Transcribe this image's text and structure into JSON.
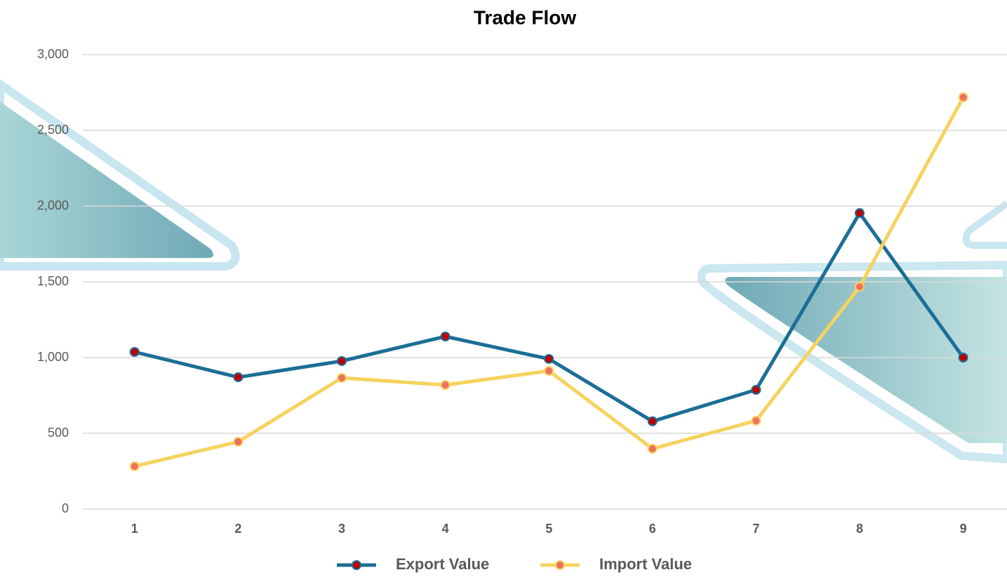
{
  "chart_data": {
    "type": "line",
    "title": "Trade Flow",
    "categories": [
      "1",
      "2",
      "3",
      "4",
      "5",
      "6",
      "7",
      "8",
      "9"
    ],
    "series": [
      {
        "name": "Export Value",
        "color": "#1b6e96",
        "marker_color": "#c00000",
        "values": [
          1037,
          870,
          977,
          1139,
          991,
          579,
          787,
          1954,
          1000
        ]
      },
      {
        "name": "Import Value",
        "color": "#f5d35e",
        "marker_color": "#f07060",
        "values": [
          282,
          444,
          866,
          819,
          912,
          398,
          583,
          1468,
          2718
        ]
      }
    ],
    "ylim": [
      0,
      3000
    ],
    "yticks": [
      0,
      500,
      {
        "value": 1000,
        "label": "1,000"
      },
      {
        "value": 1500,
        "label": "1,500"
      },
      {
        "value": 2000,
        "label": "2,000"
      },
      {
        "value": 2500,
        "label": "2,500"
      },
      {
        "value": 3000,
        "label": "3,000"
      }
    ],
    "grid": true,
    "legend": "bottom"
  }
}
